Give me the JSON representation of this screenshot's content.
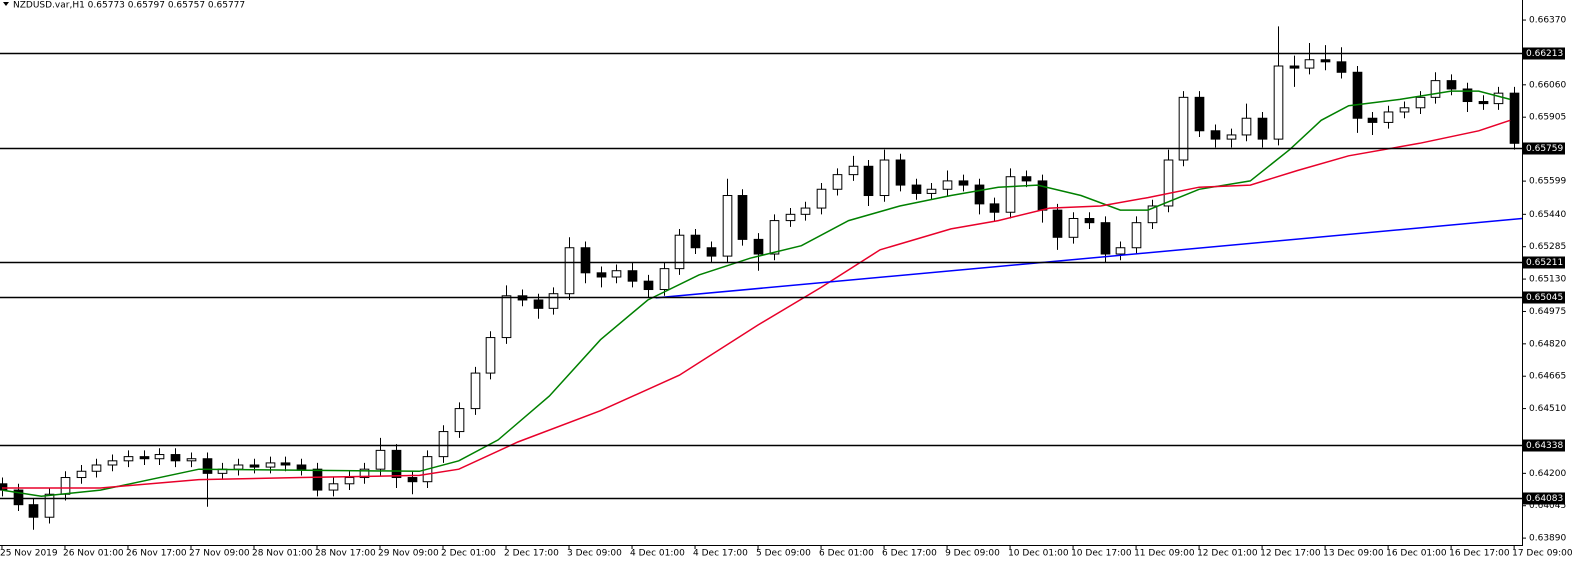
{
  "chart_data": {
    "type": "candlestick",
    "subtitle": "NZDUSD.var,H1  0.65773 0.65797 0.65757 0.65777",
    "xlim": [
      -0.5,
      386
    ],
    "ylim": [
      0.63857,
      0.66466
    ],
    "up_color": "#ffffff",
    "down_color": "#000000",
    "x": [
      0,
      4,
      8,
      12,
      16,
      20,
      24,
      28,
      32,
      36,
      40,
      44,
      48,
      52,
      56,
      60,
      64,
      68,
      72,
      76,
      80,
      84,
      88,
      92,
      96,
      100,
      104,
      108,
      112,
      116,
      120,
      124,
      128,
      132,
      136,
      140,
      144,
      148,
      152,
      156,
      160,
      164,
      168,
      172,
      176,
      180,
      184,
      188,
      192,
      196,
      200,
      204,
      208,
      212,
      216,
      220,
      224,
      228,
      232,
      236,
      240,
      244,
      248,
      252,
      256,
      260,
      264,
      268,
      272,
      276,
      280,
      284,
      288,
      292,
      296,
      300,
      304,
      308,
      312,
      316,
      320,
      324,
      328,
      332,
      336,
      340,
      344,
      348,
      352,
      356,
      360,
      364,
      368,
      372,
      376,
      380,
      384
    ],
    "open": [
      0.6415,
      0.6412,
      0.6405,
      0.6399,
      0.641,
      0.6418,
      0.6421,
      0.6424,
      0.6426,
      0.6428,
      0.6427,
      0.6429,
      0.6426,
      0.6427,
      0.642,
      0.6422,
      0.6424,
      0.6423,
      0.6425,
      0.6424,
      0.6422,
      0.6412,
      0.6415,
      0.6418,
      0.6422,
      0.6431,
      0.6418,
      0.6416,
      0.6428,
      0.644,
      0.6451,
      0.6468,
      0.6485,
      0.6505,
      0.6503,
      0.6499,
      0.6506,
      0.6528,
      0.6516,
      0.6514,
      0.6517,
      0.6512,
      0.6508,
      0.6518,
      0.6534,
      0.6528,
      0.6524,
      0.6553,
      0.6532,
      0.6525,
      0.6541,
      0.6544,
      0.6547,
      0.6556,
      0.6563,
      0.6567,
      0.6553,
      0.657,
      0.6558,
      0.6554,
      0.6556,
      0.656,
      0.6558,
      0.6549,
      0.6545,
      0.6562,
      0.656,
      0.6546,
      0.6533,
      0.6542,
      0.654,
      0.6525,
      0.6528,
      0.654,
      0.6548,
      0.657,
      0.66,
      0.6584,
      0.658,
      0.6582,
      0.659,
      0.658,
      0.6615,
      0.6614,
      0.6618,
      0.6617,
      0.6612,
      0.659,
      0.6588,
      0.6593,
      0.6595,
      0.66,
      0.6608,
      0.6604,
      0.6598,
      0.6597,
      0.6602
    ],
    "high": [
      0.6418,
      0.6415,
      0.6408,
      0.6413,
      0.6421,
      0.6424,
      0.6427,
      0.6429,
      0.6431,
      0.6431,
      0.6432,
      0.6432,
      0.643,
      0.643,
      0.6425,
      0.6427,
      0.6427,
      0.6428,
      0.6428,
      0.6427,
      0.6425,
      0.6418,
      0.6421,
      0.6425,
      0.6437,
      0.6434,
      0.6421,
      0.6431,
      0.6443,
      0.6454,
      0.6471,
      0.6488,
      0.651,
      0.6508,
      0.6506,
      0.6509,
      0.6533,
      0.6531,
      0.6519,
      0.652,
      0.6521,
      0.6515,
      0.6521,
      0.6537,
      0.6537,
      0.6531,
      0.6561,
      0.6556,
      0.6535,
      0.6544,
      0.6547,
      0.655,
      0.6559,
      0.6566,
      0.6572,
      0.657,
      0.6575,
      0.6573,
      0.6561,
      0.6559,
      0.6565,
      0.6563,
      0.6561,
      0.6552,
      0.6566,
      0.6565,
      0.6563,
      0.6549,
      0.6545,
      0.6545,
      0.6543,
      0.6531,
      0.6543,
      0.6551,
      0.6575,
      0.6603,
      0.6603,
      0.6587,
      0.6585,
      0.6597,
      0.6593,
      0.6634,
      0.662,
      0.6626,
      0.6625,
      0.6624,
      0.6615,
      0.6593,
      0.6596,
      0.6598,
      0.6603,
      0.6612,
      0.6611,
      0.6607,
      0.6601,
      0.6605,
      0.6605
    ],
    "low": [
      0.6409,
      0.6402,
      0.6393,
      0.6396,
      0.6407,
      0.6415,
      0.6418,
      0.6421,
      0.6423,
      0.6424,
      0.6424,
      0.6423,
      0.6423,
      0.6404,
      0.6417,
      0.6419,
      0.642,
      0.642,
      0.6421,
      0.6419,
      0.6409,
      0.6409,
      0.6412,
      0.6415,
      0.6419,
      0.6413,
      0.641,
      0.6413,
      0.6425,
      0.6437,
      0.6448,
      0.6465,
      0.6482,
      0.65,
      0.6494,
      0.6496,
      0.6503,
      0.6511,
      0.6509,
      0.6511,
      0.6509,
      0.6504,
      0.6505,
      0.6515,
      0.6525,
      0.6521,
      0.6521,
      0.6529,
      0.6517,
      0.6522,
      0.6538,
      0.6541,
      0.6544,
      0.6553,
      0.656,
      0.6548,
      0.655,
      0.6555,
      0.6551,
      0.6551,
      0.6553,
      0.6555,
      0.6544,
      0.6541,
      0.6542,
      0.6557,
      0.654,
      0.6527,
      0.653,
      0.6537,
      0.6521,
      0.6522,
      0.6525,
      0.6537,
      0.6545,
      0.6567,
      0.6581,
      0.6576,
      0.6576,
      0.6579,
      0.6576,
      0.6577,
      0.6605,
      0.6611,
      0.6613,
      0.6609,
      0.6583,
      0.6582,
      0.6585,
      0.659,
      0.6592,
      0.6597,
      0.6601,
      0.6593,
      0.6594,
      0.6594,
      0.6575
    ],
    "close": [
      0.6412,
      0.6405,
      0.6399,
      0.641,
      0.6418,
      0.6421,
      0.6424,
      0.6426,
      0.6428,
      0.6427,
      0.6429,
      0.6426,
      0.6427,
      0.642,
      0.6422,
      0.6424,
      0.6423,
      0.6425,
      0.6424,
      0.6422,
      0.6412,
      0.6415,
      0.6418,
      0.6422,
      0.6431,
      0.6418,
      0.6416,
      0.6428,
      0.644,
      0.6451,
      0.6468,
      0.6485,
      0.6505,
      0.6503,
      0.6499,
      0.6506,
      0.6528,
      0.6516,
      0.6514,
      0.6517,
      0.6512,
      0.6508,
      0.6518,
      0.6534,
      0.6528,
      0.6524,
      0.6553,
      0.6532,
      0.6525,
      0.6541,
      0.6544,
      0.6547,
      0.6556,
      0.6563,
      0.6567,
      0.6553,
      0.657,
      0.6558,
      0.6554,
      0.6556,
      0.656,
      0.6558,
      0.6549,
      0.6545,
      0.6562,
      0.656,
      0.6546,
      0.6533,
      0.6542,
      0.654,
      0.6525,
      0.6528,
      0.654,
      0.6548,
      0.657,
      0.66,
      0.6584,
      0.658,
      0.6582,
      0.659,
      0.658,
      0.6615,
      0.6614,
      0.6618,
      0.6617,
      0.6612,
      0.659,
      0.6588,
      0.6593,
      0.6595,
      0.66,
      0.6608,
      0.6604,
      0.6598,
      0.6597,
      0.6602,
      0.6578
    ],
    "lines": [
      {
        "color": "#008000",
        "x": [
          0,
          10,
          25,
          50,
          106,
          116,
          126,
          139,
          152,
          164,
          177,
          190,
          203,
          215,
          228,
          241,
          253,
          263,
          274,
          284,
          291,
          304,
          317,
          327,
          335,
          342,
          355,
          368,
          375,
          383
        ],
        "values": [
          0.6412,
          0.6409,
          0.6412,
          0.6422,
          0.6421,
          0.6426,
          0.6436,
          0.6457,
          0.6484,
          0.6503,
          0.6515,
          0.6523,
          0.6529,
          0.6541,
          0.6548,
          0.6553,
          0.6557,
          0.6558,
          0.6553,
          0.6546,
          0.6546,
          0.6556,
          0.656,
          0.6575,
          0.6589,
          0.6596,
          0.6599,
          0.6603,
          0.6603,
          0.6599
        ]
      },
      {
        "color": "#e8002a",
        "x": [
          0,
          25,
          50,
          76,
          106,
          116,
          131,
          152,
          172,
          192,
          208,
          223,
          241,
          253,
          266,
          279,
          291,
          304,
          317,
          329,
          342,
          360,
          375,
          383
        ],
        "values": [
          0.6413,
          0.6413,
          0.6417,
          0.6418,
          0.6419,
          0.6422,
          0.6435,
          0.645,
          0.6467,
          0.6491,
          0.6509,
          0.6527,
          0.6537,
          0.6541,
          0.6547,
          0.6548,
          0.6552,
          0.6557,
          0.6558,
          0.6565,
          0.6572,
          0.6578,
          0.6584,
          0.6589
        ]
      },
      {
        "color": "#0000ff",
        "x": [
          166,
          386
        ],
        "values": [
          0.6504,
          0.6542
        ]
      }
    ],
    "levels": [
      {
        "value": 0.66213,
        "label": "0.66213"
      },
      {
        "value": 0.65759,
        "label": "0.65759"
      },
      {
        "value": 0.65211,
        "label": "0.65211"
      },
      {
        "value": 0.65045,
        "label": "0.65045"
      },
      {
        "value": 0.64338,
        "label": "0.64338"
      },
      {
        "value": 0.64083,
        "label": "0.64083"
      }
    ],
    "yticks": [
      {
        "value": 0.6637,
        "label": "0.66370"
      },
      {
        "value": 0.6606,
        "label": "0.66060"
      },
      {
        "value": 0.65905,
        "label": "0.65905"
      },
      {
        "value": 0.65599,
        "label": "0.65599"
      },
      {
        "value": 0.6544,
        "label": "0.65440"
      },
      {
        "value": 0.65285,
        "label": "0.65285"
      },
      {
        "value": 0.6513,
        "label": "0.65130"
      },
      {
        "value": 0.64975,
        "label": "0.64975"
      },
      {
        "value": 0.6482,
        "label": "0.64820"
      },
      {
        "value": 0.64665,
        "label": "0.64665"
      },
      {
        "value": 0.6451,
        "label": "0.64510"
      },
      {
        "value": 0.642,
        "label": "0.64200"
      },
      {
        "value": 0.64045,
        "label": "0.64045"
      },
      {
        "value": 0.6389,
        "label": "0.63890"
      }
    ],
    "xticks": [
      {
        "value": 0,
        "label": "25 Nov 2019"
      },
      {
        "value": 16,
        "label": "26 Nov 01:00"
      },
      {
        "value": 32,
        "label": "26 Nov 17:00"
      },
      {
        "value": 48,
        "label": "27 Nov 09:00"
      },
      {
        "value": 64,
        "label": "28 Nov 01:00"
      },
      {
        "value": 80,
        "label": "28 Nov 17:00"
      },
      {
        "value": 96,
        "label": "29 Nov 09:00"
      },
      {
        "value": 112,
        "label": "2 Dec 01:00"
      },
      {
        "value": 128,
        "label": "2 Dec 17:00"
      },
      {
        "value": 144,
        "label": "3 Dec 09:00"
      },
      {
        "value": 160,
        "label": "4 Dec 01:00"
      },
      {
        "value": 176,
        "label": "4 Dec 17:00"
      },
      {
        "value": 192,
        "label": "5 Dec 09:00"
      },
      {
        "value": 208,
        "label": "6 Dec 01:00"
      },
      {
        "value": 224,
        "label": "6 Dec 17:00"
      },
      {
        "value": 240,
        "label": "9 Dec 09:00"
      },
      {
        "value": 256,
        "label": "10 Dec 01:00"
      },
      {
        "value": 272,
        "label": "10 Dec 17:00"
      },
      {
        "value": 288,
        "label": "11 Dec 09:00"
      },
      {
        "value": 304,
        "label": "12 Dec 01:00"
      },
      {
        "value": 320,
        "label": "12 Dec 17:00"
      },
      {
        "value": 336,
        "label": "13 Dec 09:00"
      },
      {
        "value": 352,
        "label": "16 Dec 01:00"
      },
      {
        "value": 368,
        "label": "16 Dec 17:00"
      },
      {
        "value": 384,
        "label": "17 Dec 09:00"
      }
    ]
  }
}
